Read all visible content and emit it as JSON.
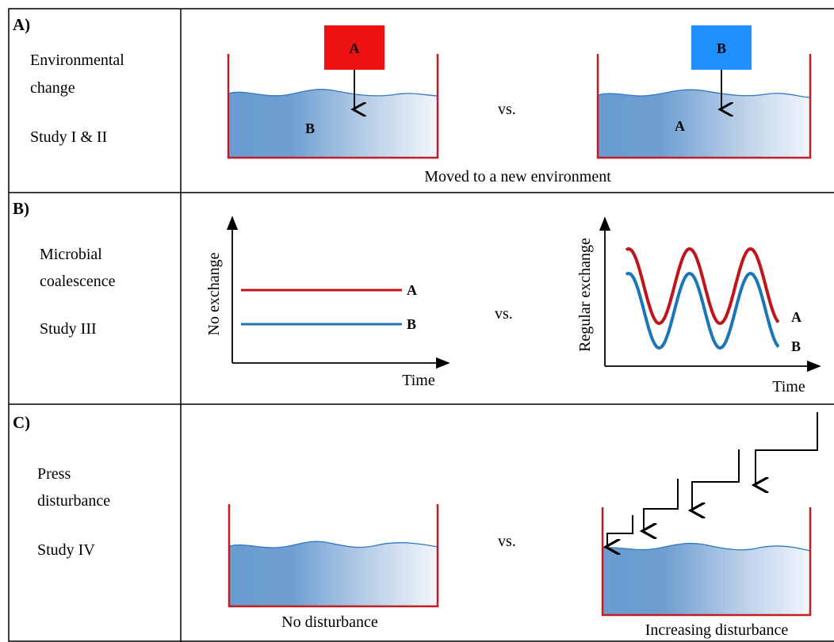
{
  "panels": {
    "a": {
      "letter": "A)",
      "title_line1": "Environmental",
      "title_line2": "change",
      "study": "Study I & II",
      "left_box_label": "A",
      "left_water_label": "B",
      "right_box_label": "B",
      "right_water_label": "A",
      "vs": "vs.",
      "caption": "Moved to a new environment"
    },
    "b": {
      "letter": "B)",
      "title_line1": "Microbial",
      "title_line2": "coalescence",
      "study": "Study III",
      "left_ylabel": "No exchange",
      "left_xlabel": "Time",
      "right_ylabel": "Regular exchange",
      "right_xlabel": "Time",
      "series_a_label": "A",
      "series_b_label": "B",
      "vs": "vs."
    },
    "c": {
      "letter": "C)",
      "title_line1": "Press",
      "title_line2": "disturbance",
      "study": "Study IV",
      "vs": "vs.",
      "left_caption": "No disturbance",
      "right_caption": "Increasing disturbance"
    }
  },
  "colors": {
    "series_a": "#c0141c",
    "series_b": "#1a75bb",
    "box_a": "#ee1111",
    "box_b": "#1e90ff",
    "container": "#c41e24",
    "water_dark": "#6a9ccf",
    "water_light": "#f2f6fb"
  }
}
